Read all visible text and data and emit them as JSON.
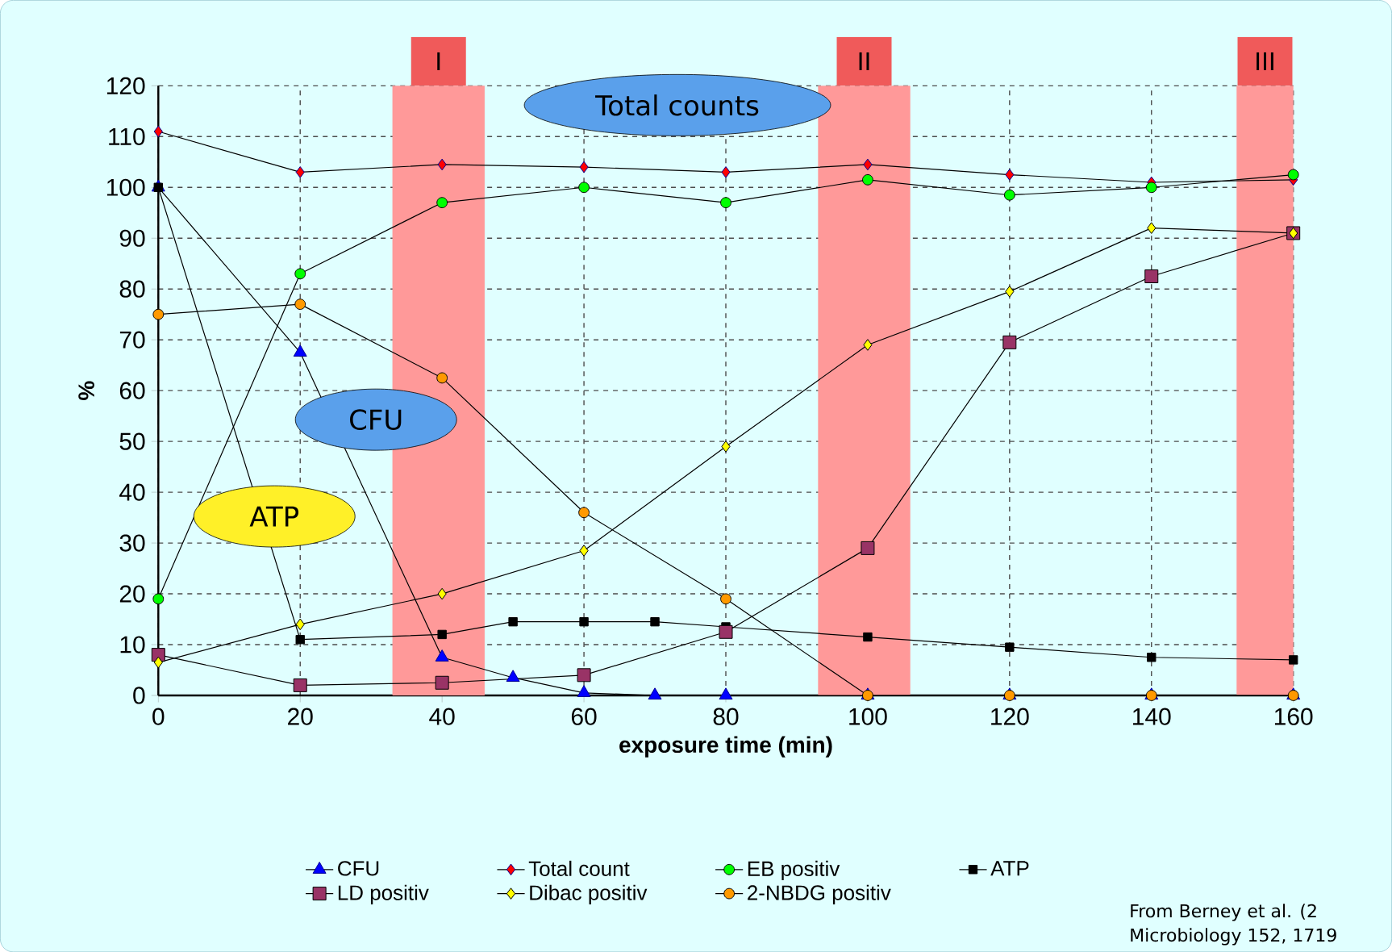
{
  "chart_data": {
    "type": "line",
    "xlabel": "exposure time (min)",
    "ylabel": "%",
    "x": [
      0,
      20,
      40,
      60,
      80,
      100,
      120,
      140,
      160
    ],
    "xlim": [
      0,
      160
    ],
    "xticks": [
      0,
      20,
      40,
      60,
      80,
      100,
      120,
      140,
      160
    ],
    "ylim": [
      0,
      120
    ],
    "yticks": [
      0,
      10,
      20,
      30,
      40,
      50,
      60,
      70,
      80,
      90,
      100,
      110,
      120
    ],
    "grid": true,
    "legend": "bottom",
    "line_style": "solid",
    "series": [
      {
        "name": "CFU",
        "color": "#0000ff",
        "marker": "triangle",
        "x": [
          0,
          20,
          40,
          50,
          60,
          70,
          80,
          100,
          120,
          140,
          160
        ],
        "values": [
          100,
          67.5,
          7.5,
          3.5,
          0.5,
          0,
          0,
          0,
          0,
          0,
          0
        ]
      },
      {
        "name": "Total count",
        "color": "#ff0000",
        "marker": "diamond",
        "values": [
          111,
          103,
          104.5,
          104,
          103,
          104.5,
          102.5,
          101,
          101.5
        ]
      },
      {
        "name": "EB positiv",
        "color": "#00ff00",
        "marker": "circle",
        "values": [
          19,
          83,
          97,
          100,
          97,
          101.5,
          98.5,
          100,
          102.5
        ]
      },
      {
        "name": "ATP",
        "color": "#000000",
        "marker": "square",
        "x": [
          0,
          20,
          40,
          50,
          60,
          70,
          80,
          100,
          120,
          140,
          160
        ],
        "values": [
          100,
          11,
          12,
          14.5,
          14.5,
          14.5,
          13.5,
          11.5,
          9.5,
          7.5,
          7
        ]
      },
      {
        "name": "LD positiv",
        "color": "#993366",
        "marker": "square",
        "values": [
          8,
          2,
          2.5,
          4,
          12.5,
          29,
          69.5,
          82.5,
          91
        ]
      },
      {
        "name": "Dibac positiv",
        "color": "#ffff00",
        "marker": "diamond",
        "values": [
          6.5,
          14,
          20,
          28.5,
          49,
          69,
          79.5,
          92,
          91
        ]
      },
      {
        "name": "2-NBDG positiv",
        "color": "#ff9900",
        "marker": "circle",
        "values": [
          75,
          77,
          62.5,
          36,
          19,
          0,
          0,
          0,
          0
        ]
      }
    ],
    "bands": [
      {
        "axis": "x",
        "from": 33,
        "to": 46,
        "label": "I",
        "color": "#ff9999"
      },
      {
        "axis": "x",
        "from": 93,
        "to": 106,
        "label": "II",
        "color": "#ff9999"
      },
      {
        "axis": "x",
        "from": 152,
        "to": 160,
        "label": "III",
        "color": "#ff9999"
      }
    ],
    "annotations": [
      "Total counts",
      "CFU",
      "ATP",
      "From Berney et al. (2",
      "Microbiology 152, 1719"
    ]
  }
}
